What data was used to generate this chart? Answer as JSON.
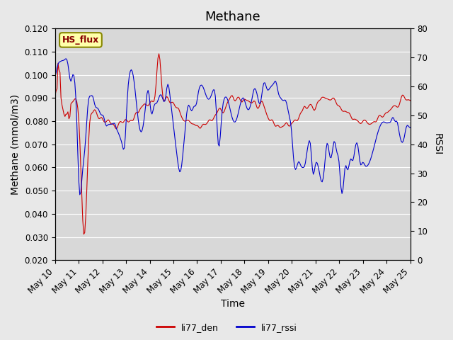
{
  "title": "Methane",
  "xlabel": "Time",
  "ylabel_left": "Methane (mmol/m3)",
  "ylabel_right": "RSSI",
  "ylim_left": [
    0.02,
    0.12
  ],
  "ylim_right": [
    0,
    80
  ],
  "yticks_left": [
    0.02,
    0.03,
    0.04,
    0.05,
    0.06,
    0.07,
    0.08,
    0.09,
    0.1,
    0.11,
    0.12
  ],
  "yticks_right": [
    0,
    10,
    20,
    30,
    40,
    50,
    60,
    70,
    80
  ],
  "xticklabels": [
    "May 10",
    "May 11",
    "May 12",
    "May 13",
    "May 14",
    "May 15",
    "May 16",
    "May 17",
    "May 18",
    "May 19",
    "May 20",
    "May 21",
    "May 22",
    "May 23",
    "May 24",
    "May 25"
  ],
  "legend_labels": [
    "li77_den",
    "li77_rssi"
  ],
  "legend_colors": [
    "red",
    "blue"
  ],
  "line_color_den": "#cc0000",
  "line_color_rssi": "#0000cc",
  "box_label": "HS_flux",
  "box_facecolor": "#ffffaa",
  "box_edgecolor": "#888800",
  "bg_color": "#e8e8e8",
  "plot_bg_color": "#d8d8d8",
  "grid_color": "#ffffff",
  "title_fontsize": 13,
  "axis_label_fontsize": 10,
  "tick_fontsize": 8.5,
  "seed": 42
}
